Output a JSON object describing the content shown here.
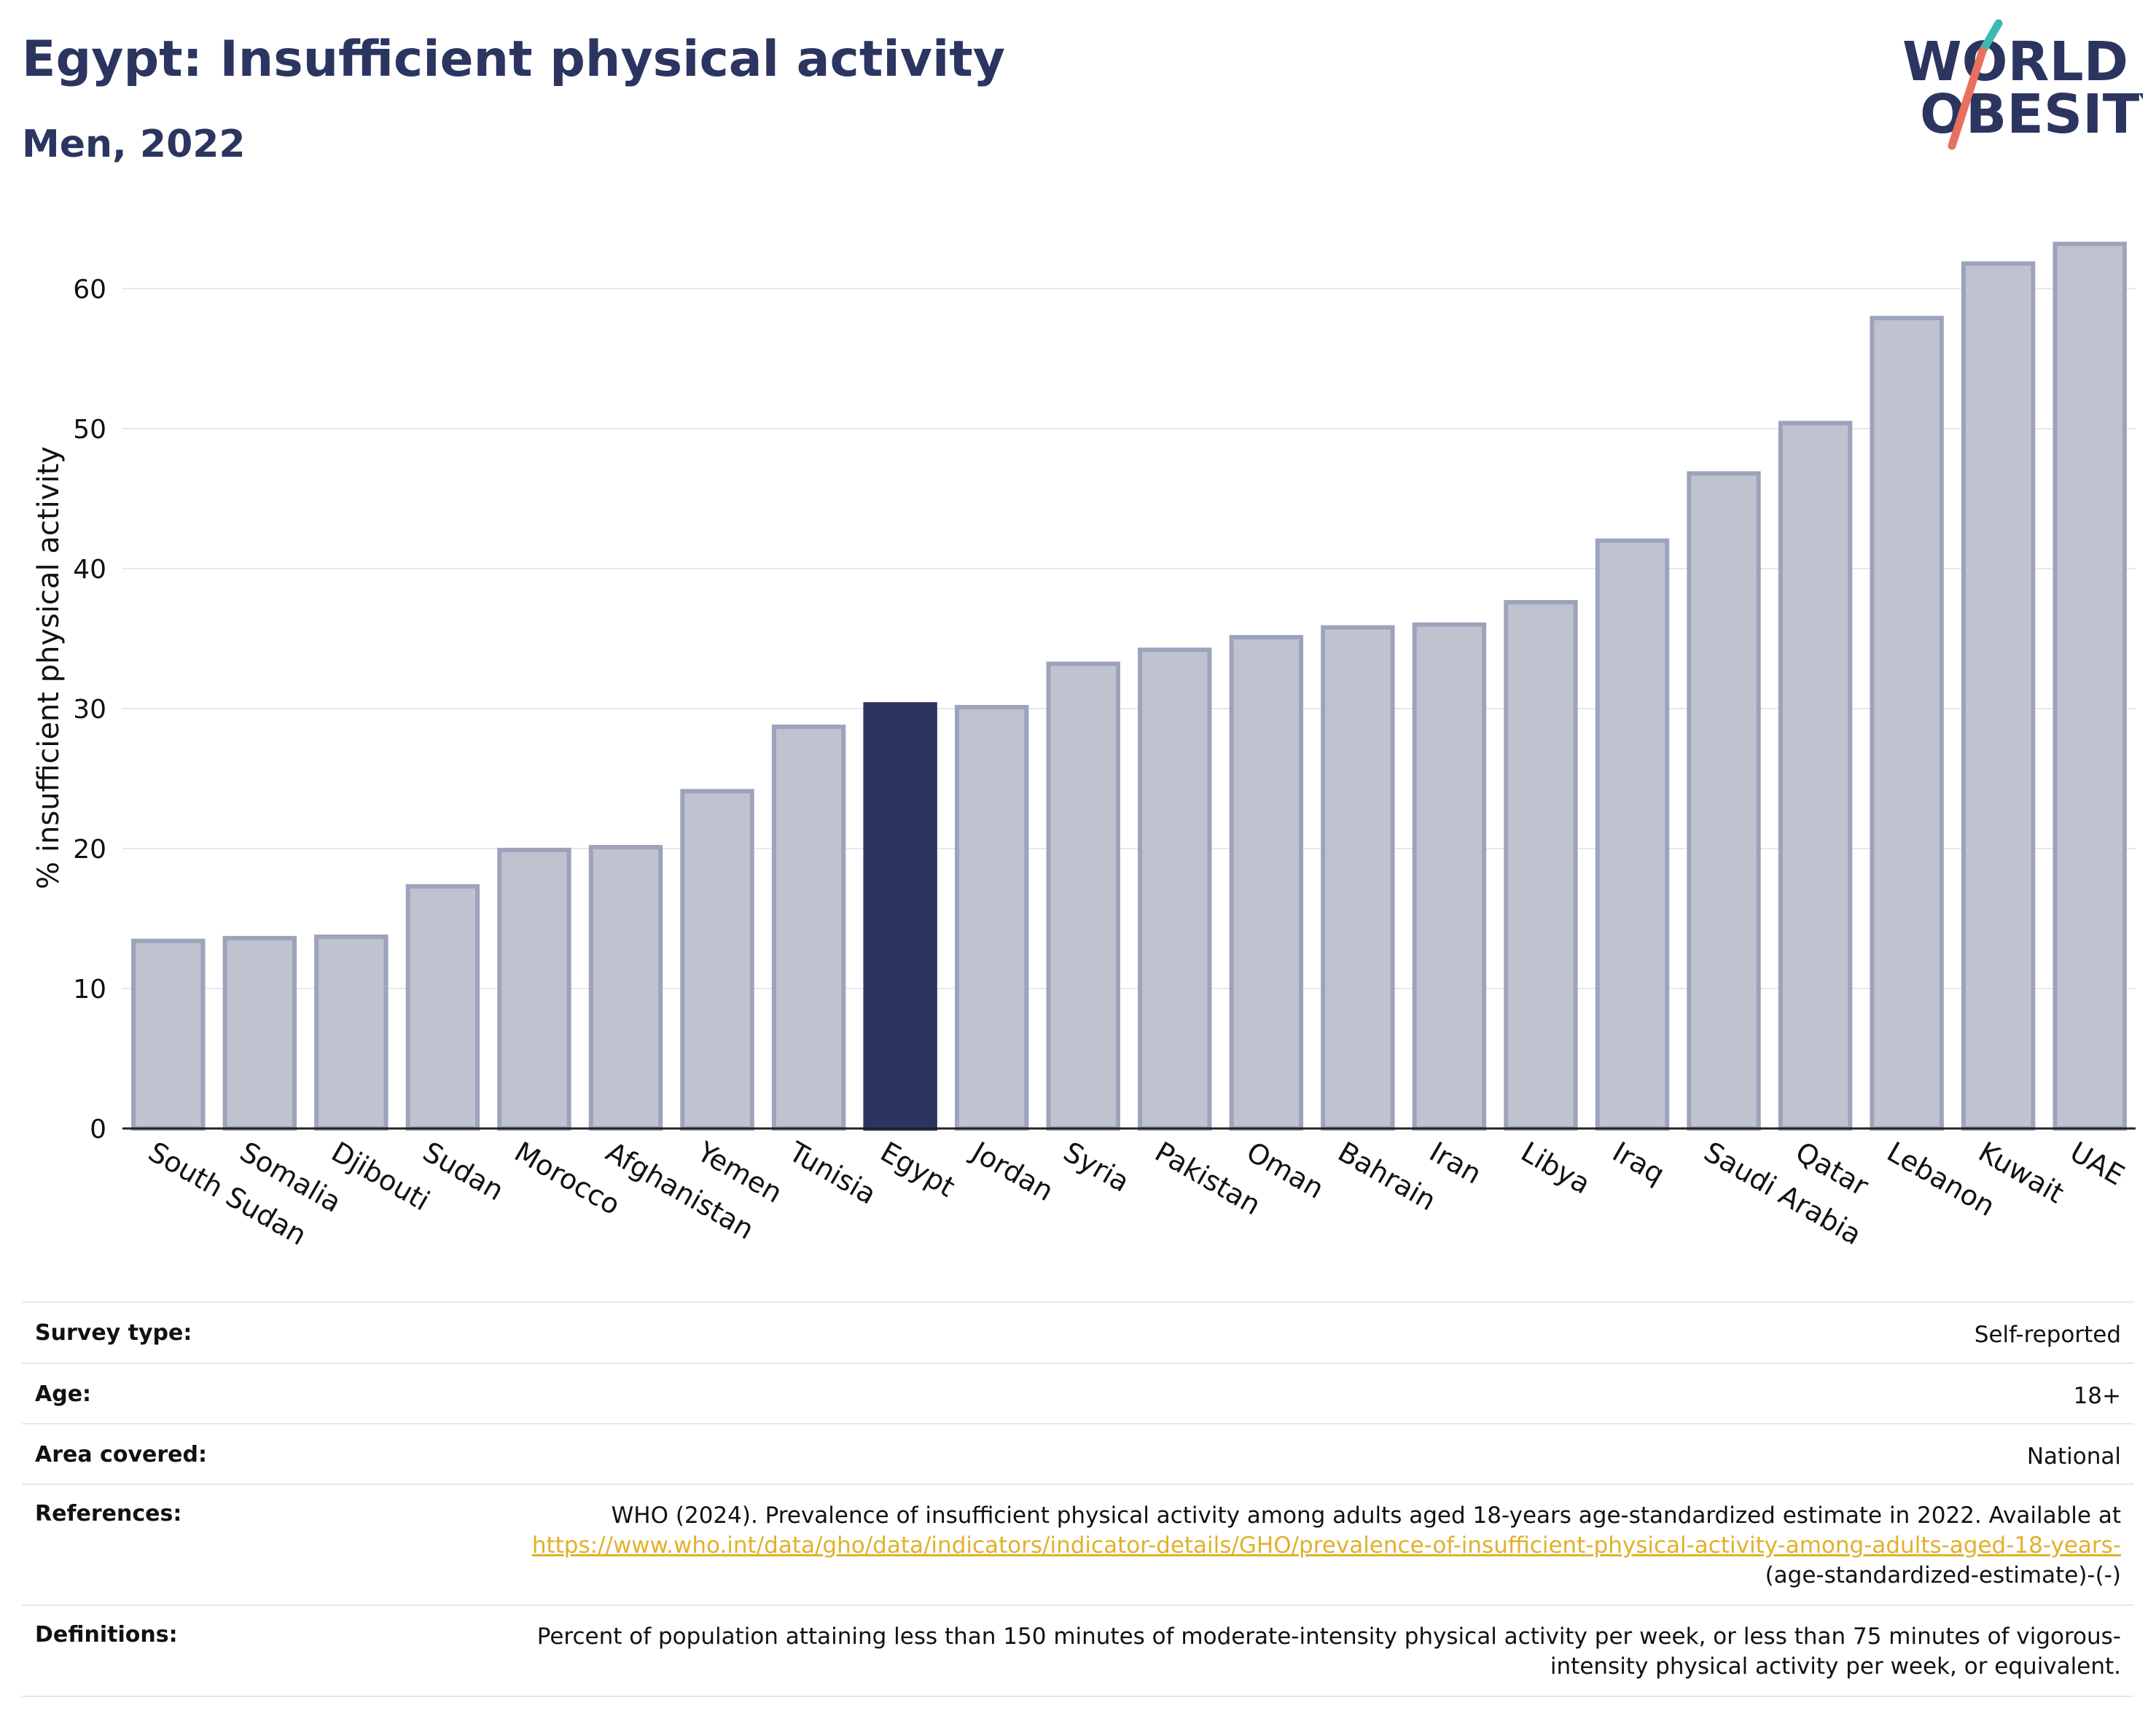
{
  "header": {
    "title": "Egypt: Insufficient physical activity",
    "subtitle": "Men, 2022"
  },
  "logo": {
    "line1": "WORLD",
    "line2": "OBESITY",
    "colors": {
      "text": "#2b3560",
      "slash_teal": "#3fb8b4",
      "slash_coral": "#e8705e"
    }
  },
  "colors": {
    "highlight_bar": "#2b3560",
    "other_bar_fill": "#bfc3d0",
    "other_bar_stroke": "#9da3bb",
    "grid": "#e6e8ee",
    "axis": "#222222",
    "link": "#e0b12a"
  },
  "chart_data": {
    "type": "bar",
    "title": "",
    "xlabel": "",
    "ylabel": "% insufficient physical activity",
    "ylim": [
      0,
      65
    ],
    "yticks": [
      0,
      10,
      20,
      30,
      40,
      50,
      60
    ],
    "grid": true,
    "highlight": "Egypt",
    "categories": [
      "South Sudan",
      "Somalia",
      "Djibouti",
      "Sudan",
      "Morocco",
      "Afghanistan",
      "Yemen",
      "Tunisia",
      "Egypt",
      "Jordan",
      "Syria",
      "Pakistan",
      "Oman",
      "Bahrain",
      "Iran",
      "Libya",
      "Iraq",
      "Saudi Arabia",
      "Qatar",
      "Lebanon",
      "Kuwait",
      "UAE"
    ],
    "values": [
      13.4,
      13.6,
      13.7,
      17.3,
      19.9,
      20.1,
      24.1,
      28.7,
      30.3,
      30.1,
      33.2,
      34.2,
      35.1,
      35.8,
      36.0,
      37.6,
      42.0,
      46.8,
      50.4,
      57.9,
      61.8,
      63.2
    ]
  },
  "metadata": [
    {
      "label": "Survey type:",
      "value": "Self-reported"
    },
    {
      "label": "Age:",
      "value": "18+"
    },
    {
      "label": "Area covered:",
      "value": "National"
    },
    {
      "label": "References:",
      "value": "WHO (2024). Prevalence of insufficient physical activity among adults aged 18-years age-standardized estimate in 2022. Available at",
      "link": "https://www.who.int/data/gho/data/indicators/indicator-details/GHO/prevalence-of-insufficient-physical-activity-among-adults-aged-18-years-",
      "suffix": "(age-standardized-estimate)-(-)"
    },
    {
      "label": "Definitions:",
      "value": "Percent of population attaining less than 150 minutes of moderate-intensity physical activity per week, or less than 75 minutes of vigorous-intensity physical activity per week, or equivalent."
    }
  ]
}
